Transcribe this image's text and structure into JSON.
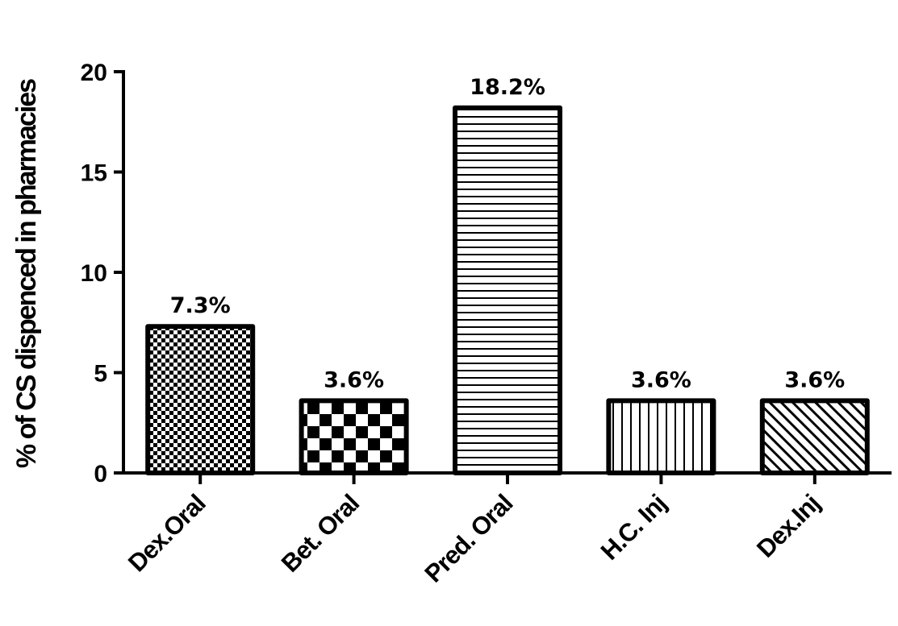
{
  "chart_data": {
    "type": "bar",
    "title": "",
    "xlabel": "",
    "ylabel": "% of CS dispenced in pharmacies",
    "categories": [
      "Dex.Oral",
      "Bet. Oral",
      "Pred. Oral",
      "H.C. Inj",
      "Dex.Inj"
    ],
    "values": [
      7.3,
      3.6,
      18.2,
      3.6,
      3.6
    ],
    "data_labels": [
      "7.3%",
      "3.6%",
      "18.2%",
      "3.6%",
      "3.6%"
    ],
    "patterns": [
      "fine-checker",
      "coarse-checker",
      "horizontal-lines",
      "vertical-lines",
      "diagonal-lines"
    ],
    "yticks": [
      0,
      5,
      10,
      15,
      20
    ],
    "ylim": [
      0,
      20
    ],
    "grid": false,
    "legend": "none",
    "colors": {
      "ink": "#000000",
      "fill": "#ffffff"
    }
  }
}
